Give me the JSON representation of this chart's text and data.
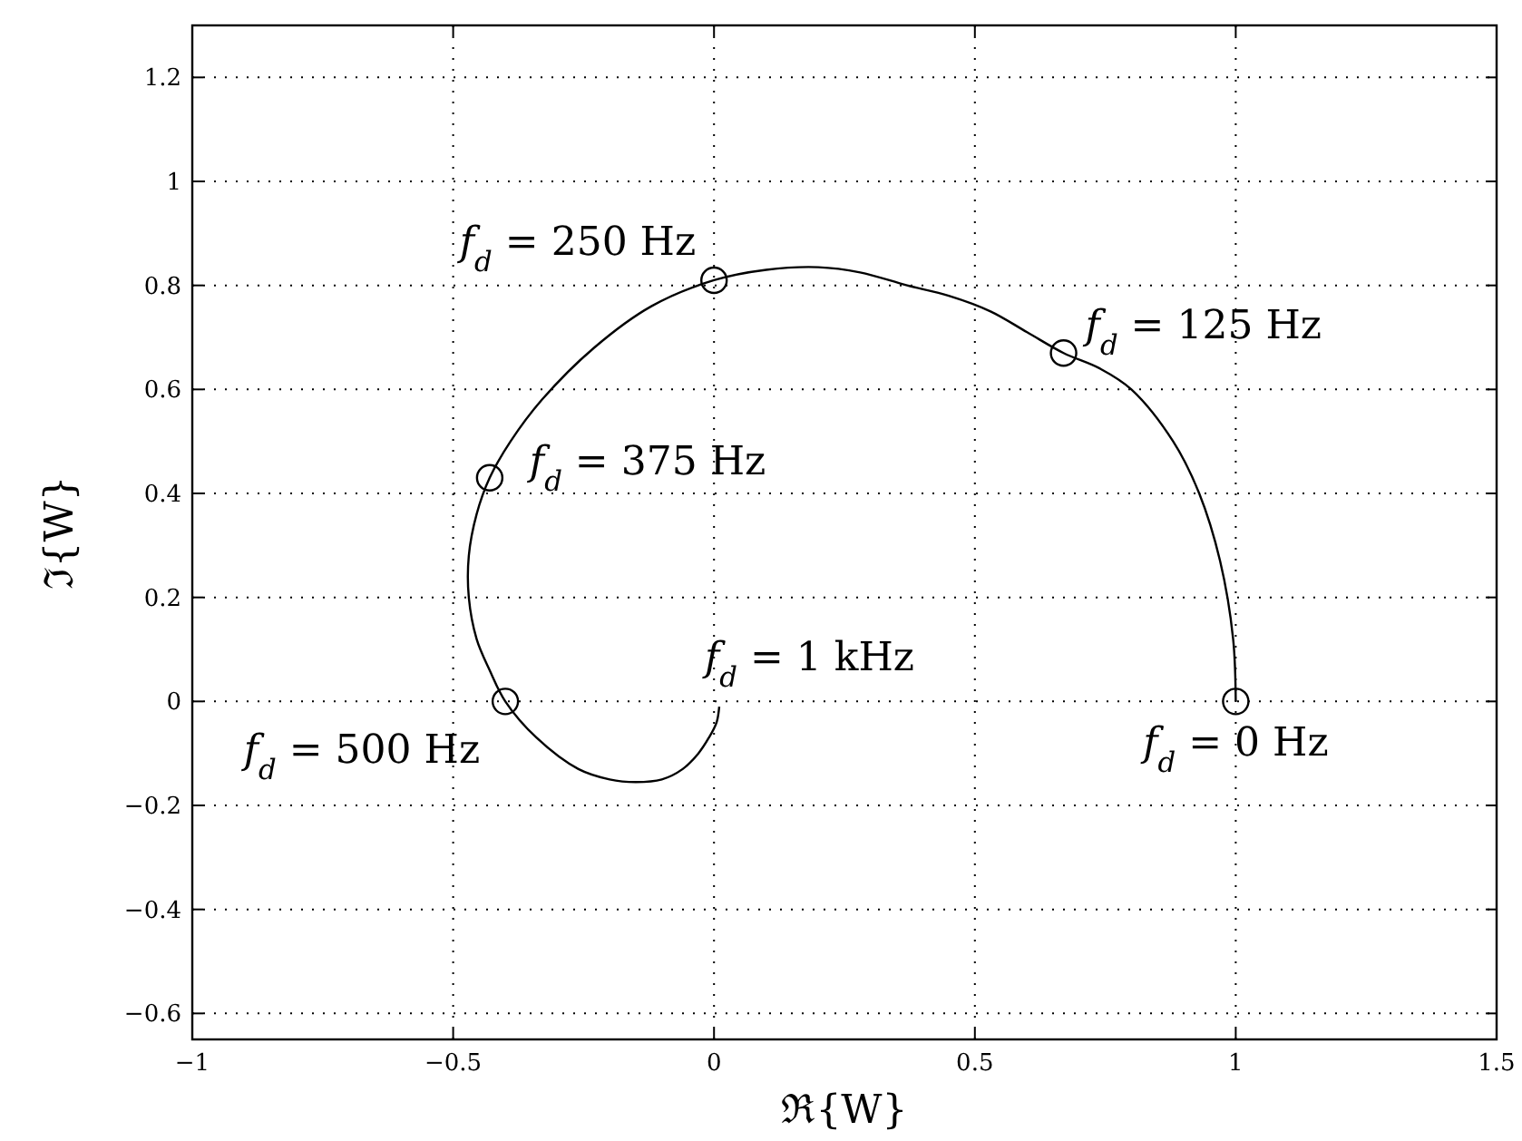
{
  "chart_data": {
    "type": "line",
    "xlabel": "ℜ{W}",
    "ylabel": "ℑ{W}",
    "xlim": [
      -1,
      1.5
    ],
    "ylim": [
      -0.65,
      1.3
    ],
    "xticks": [
      -1,
      -0.5,
      0,
      0.5,
      1,
      1.5
    ],
    "yticks": [
      -0.6,
      -0.4,
      -0.2,
      0,
      0.2,
      0.4,
      0.6,
      0.8,
      1,
      1.2
    ],
    "grid": true,
    "line_style": "solid",
    "series": [
      {
        "color": "#000000",
        "x": [
          1,
          0.995,
          0.97,
          0.93,
          0.88,
          0.8,
          0.74,
          0.67,
          0.6,
          0.53,
          0.45,
          0.37,
          0.28,
          0.2,
          0.1,
          0,
          -0.12,
          -0.23,
          -0.33,
          -0.39,
          -0.43,
          -0.455,
          -0.47,
          -0.47,
          -0.455,
          -0.43,
          -0.4,
          -0.34,
          -0.26,
          -0.2,
          -0.15,
          -0.1,
          -0.06,
          -0.03,
          -0.01,
          0.005,
          0.01
        ],
        "values": [
          0,
          0.12,
          0.27,
          0.4,
          0.5,
          0.6,
          0.64,
          0.67,
          0.71,
          0.75,
          0.78,
          0.8,
          0.825,
          0.835,
          0.83,
          0.81,
          0.76,
          0.68,
          0.58,
          0.5,
          0.43,
          0.36,
          0.28,
          0.2,
          0.12,
          0.06,
          0,
          -0.07,
          -0.13,
          -0.15,
          -0.155,
          -0.15,
          -0.13,
          -0.1,
          -0.07,
          -0.04,
          -0.01
        ]
      },
      {
        "type": "scatter",
        "color": "#000000",
        "marker": "circle",
        "x": [
          1,
          0.67,
          0,
          -0.43,
          -0.4
        ],
        "values": [
          0,
          0.67,
          0.81,
          0.43,
          0
        ]
      }
    ],
    "annotations": [
      {
        "text": "f$_{d}$ = 0 Hz",
        "x": 1,
        "y": 0
      },
      {
        "text": "f$_{d}$ = 125 Hz",
        "x": 0.67,
        "y": 0.67
      },
      {
        "text": "f$_{d}$ = 250 Hz",
        "x": 0,
        "y": 0.81
      },
      {
        "text": "f$_{d}$ = 375 Hz",
        "x": -0.43,
        "y": 0.43
      },
      {
        "text": "f$_{d}$ = 500 Hz",
        "x": -0.4,
        "y": 0
      },
      {
        "text": "f$_{d}$ = 1 kHz",
        "x": 0.01,
        "y": -0.01
      }
    ]
  }
}
